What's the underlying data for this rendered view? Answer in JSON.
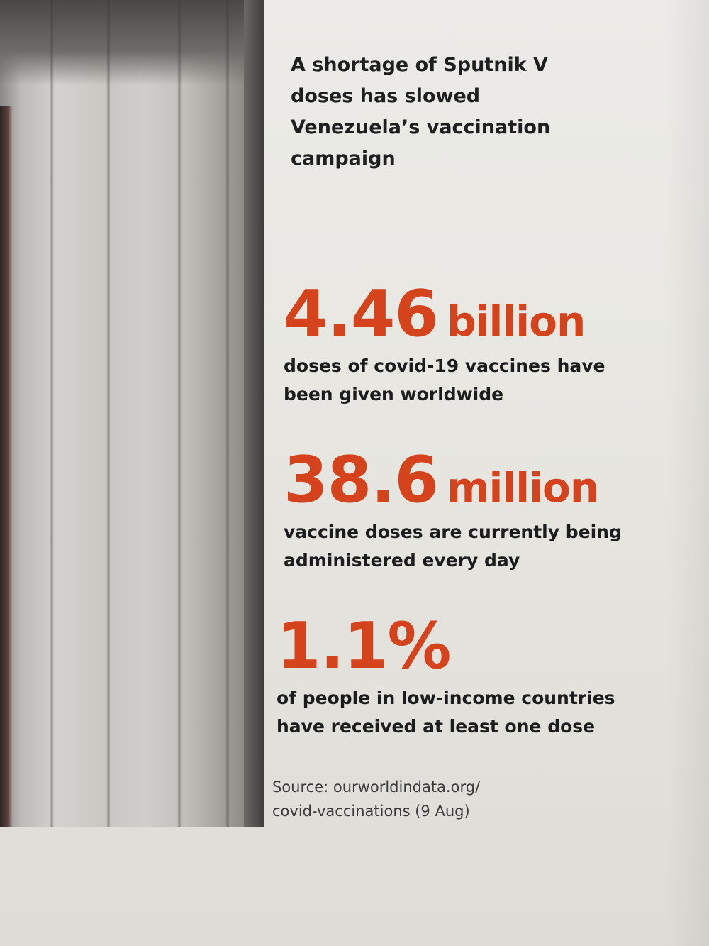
{
  "caption": {
    "line1": "A shortage of Sputnik V",
    "line2": "doses has slowed",
    "line3": "Venezuela’s vaccination",
    "line4": "campaign"
  },
  "stats": [
    {
      "value": "4.46",
      "unit": "billion",
      "desc_line1": "doses of covid-19 vaccines have",
      "desc_line2": "been given worldwide"
    },
    {
      "value": "38.6",
      "unit": "million",
      "desc_line1": "vaccine doses are currently being",
      "desc_line2": "administered every day"
    },
    {
      "value": "1.1%",
      "unit": "",
      "desc_line1": "of people in low-income countries",
      "desc_line2": "have received at least one dose"
    }
  ],
  "source": {
    "line1": "Source: ourworldindata.org/",
    "line2": "covid-vaccinations (9 Aug)"
  },
  "colors": {
    "accent": "#d4431b",
    "text": "#1c1c1c",
    "paper": "#e9e8e4"
  }
}
